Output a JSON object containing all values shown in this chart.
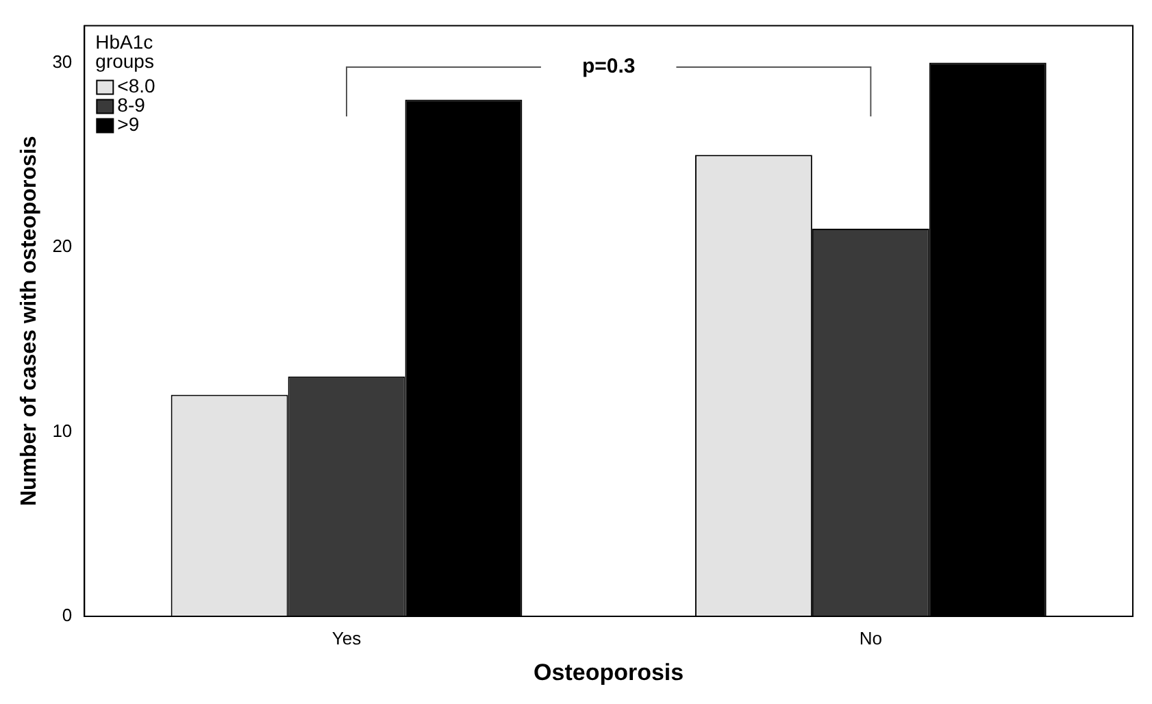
{
  "chart_data": {
    "type": "bar",
    "xlabel": "Osteoporosis",
    "ylabel": "Number of cases with osteoporosis",
    "legend_title": "HbA1c groups",
    "categories": [
      "Yes",
      "No"
    ],
    "series": [
      {
        "name": "<8.0",
        "color": "#e3e3e3",
        "values": [
          12,
          25
        ]
      },
      {
        "name": "8-9",
        "color": "#3a3a3a",
        "values": [
          13,
          21
        ]
      },
      {
        "name": ">9",
        "color": "#000000",
        "values": [
          28,
          30
        ]
      }
    ],
    "ylim": [
      0,
      32
    ],
    "yticks": [
      0,
      10,
      20,
      30
    ],
    "grid": false,
    "legend": "top left",
    "annotations": [
      "p=0.3"
    ]
  }
}
